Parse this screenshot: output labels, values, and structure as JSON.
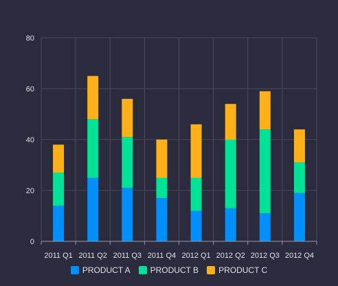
{
  "chart_data": {
    "type": "bar",
    "stacked": true,
    "categories": [
      "2011 Q1",
      "2011 Q2",
      "2011 Q3",
      "2011 Q4",
      "2012 Q1",
      "2012 Q2",
      "2012 Q3",
      "2012 Q4"
    ],
    "series": [
      {
        "name": "PRODUCT A",
        "color": "#008ffb",
        "values": [
          14,
          25,
          21,
          17,
          12,
          13,
          11,
          19
        ]
      },
      {
        "name": "PRODUCT B",
        "color": "#00e396",
        "values": [
          13,
          23,
          20,
          8,
          13,
          27,
          33,
          12
        ]
      },
      {
        "name": "PRODUCT C",
        "color": "#feb019",
        "values": [
          11,
          17,
          15,
          15,
          21,
          14,
          15,
          13
        ]
      }
    ],
    "ylim": [
      0,
      80
    ],
    "yticks": [
      0,
      20,
      40,
      60,
      80
    ],
    "grid": true,
    "legend_position": "bottom"
  },
  "colors": {
    "background": "#2a2b3d",
    "grid": "#4a4c60",
    "axis_text": "#dfe2ea"
  }
}
